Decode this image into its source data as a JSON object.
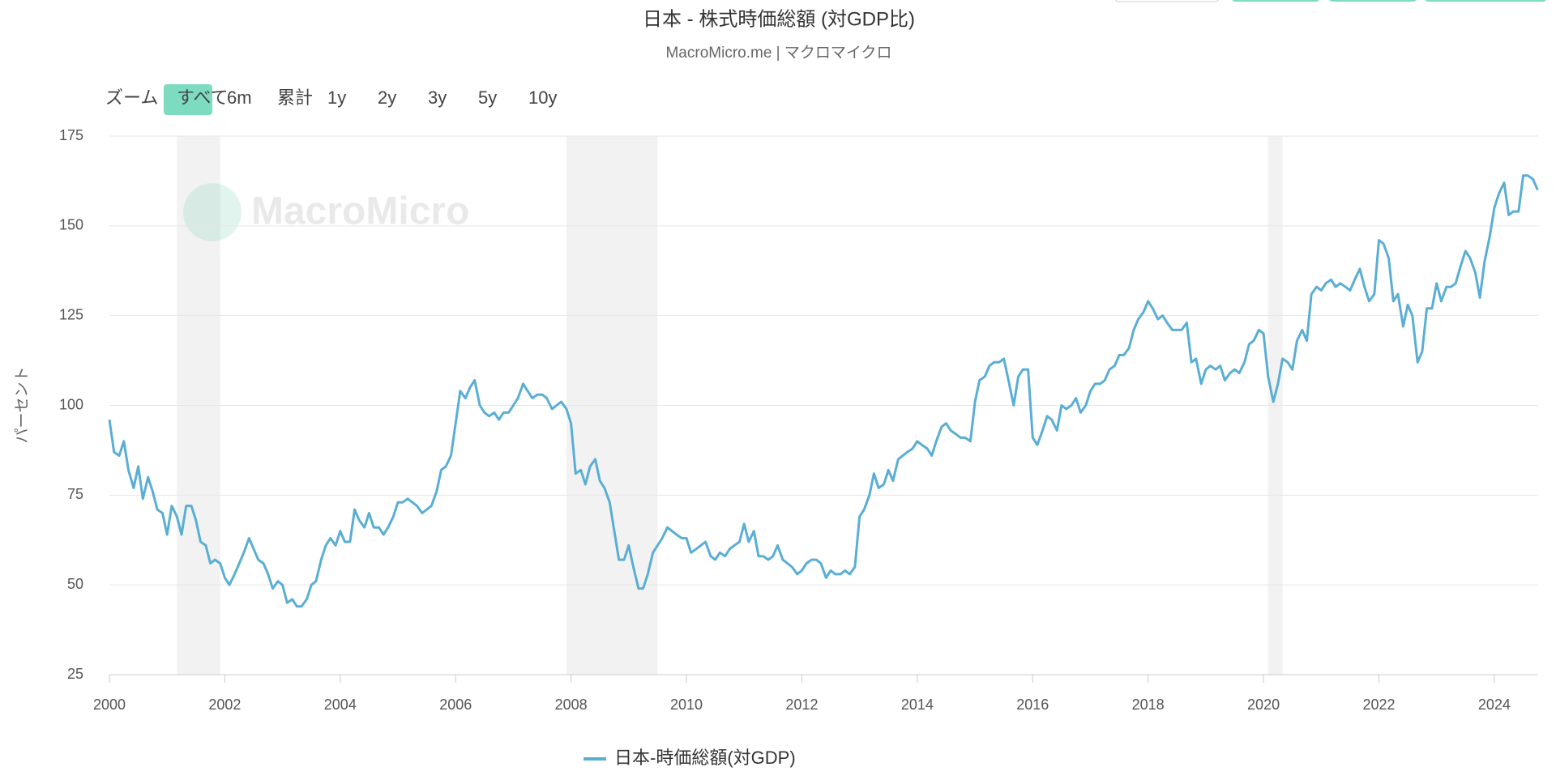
{
  "chart_data": {
    "type": "line",
    "title": "日本 - 株式時価総額 (対GDP比)",
    "subtitle": "MacroMicro.me | マクロマイクロ",
    "watermark": "MacroMicro",
    "y_label": "パーセント",
    "zoom_label": "ズーム",
    "zoom_buttons": [
      "すべて",
      "6m",
      "累計",
      "1y",
      "2y",
      "3y",
      "5y",
      "10y"
    ],
    "xlim": [
      2000,
      2024.76
    ],
    "ylim": [
      25,
      175
    ],
    "xticks": [
      2000,
      2002,
      2004,
      2006,
      2008,
      2010,
      2012,
      2014,
      2016,
      2018,
      2020,
      2022,
      2024
    ],
    "yticks": [
      25,
      50,
      75,
      100,
      125,
      150,
      175
    ],
    "grid": true,
    "shaded_ranges": [
      [
        2001.17,
        2001.92
      ],
      [
        2007.92,
        2009.5
      ],
      [
        2020.08,
        2020.33
      ]
    ],
    "x": [
      2000.0,
      2000.08,
      2000.17,
      2000.25,
      2000.33,
      2000.42,
      2000.5,
      2000.58,
      2000.67,
      2000.75,
      2000.83,
      2000.92,
      2001.0,
      2001.08,
      2001.17,
      2001.25,
      2001.33,
      2001.42,
      2001.5,
      2001.58,
      2001.67,
      2001.75,
      2001.83,
      2001.92,
      2002.0,
      2002.08,
      2002.17,
      2002.25,
      2002.33,
      2002.42,
      2002.5,
      2002.58,
      2002.67,
      2002.75,
      2002.83,
      2002.92,
      2003.0,
      2003.08,
      2003.17,
      2003.25,
      2003.33,
      2003.42,
      2003.5,
      2003.58,
      2003.67,
      2003.75,
      2003.83,
      2003.92,
      2004.0,
      2004.08,
      2004.17,
      2004.25,
      2004.33,
      2004.42,
      2004.5,
      2004.58,
      2004.67,
      2004.75,
      2004.83,
      2004.92,
      2005.0,
      2005.08,
      2005.17,
      2005.25,
      2005.33,
      2005.42,
      2005.5,
      2005.58,
      2005.67,
      2005.75,
      2005.83,
      2005.92,
      2006.0,
      2006.08,
      2006.17,
      2006.25,
      2006.33,
      2006.42,
      2006.5,
      2006.58,
      2006.67,
      2006.75,
      2006.83,
      2006.92,
      2007.0,
      2007.08,
      2007.17,
      2007.25,
      2007.33,
      2007.42,
      2007.5,
      2007.58,
      2007.67,
      2007.75,
      2007.83,
      2007.92,
      2008.0,
      2008.08,
      2008.17,
      2008.25,
      2008.33,
      2008.42,
      2008.5,
      2008.58,
      2008.67,
      2008.75,
      2008.83,
      2008.92,
      2009.0,
      2009.08,
      2009.17,
      2009.25,
      2009.33,
      2009.42,
      2009.5,
      2009.58,
      2009.67,
      2009.75,
      2009.83,
      2009.92,
      2010.0,
      2010.08,
      2010.17,
      2010.25,
      2010.33,
      2010.42,
      2010.5,
      2010.58,
      2010.67,
      2010.75,
      2010.83,
      2010.92,
      2011.0,
      2011.08,
      2011.17,
      2011.25,
      2011.33,
      2011.42,
      2011.5,
      2011.58,
      2011.67,
      2011.75,
      2011.83,
      2011.92,
      2012.0,
      2012.08,
      2012.17,
      2012.25,
      2012.33,
      2012.42,
      2012.5,
      2012.58,
      2012.67,
      2012.75,
      2012.83,
      2012.92,
      2013.0,
      2013.08,
      2013.17,
      2013.25,
      2013.33,
      2013.42,
      2013.5,
      2013.58,
      2013.67,
      2013.75,
      2013.83,
      2013.92,
      2014.0,
      2014.08,
      2014.17,
      2014.25,
      2014.33,
      2014.42,
      2014.5,
      2014.58,
      2014.67,
      2014.75,
      2014.83,
      2014.92,
      2015.0,
      2015.08,
      2015.17,
      2015.25,
      2015.33,
      2015.42,
      2015.5,
      2015.58,
      2015.67,
      2015.75,
      2015.83,
      2015.92,
      2016.0,
      2016.08,
      2016.17,
      2016.25,
      2016.33,
      2016.42,
      2016.5,
      2016.58,
      2016.67,
      2016.75,
      2016.83,
      2016.92,
      2017.0,
      2017.08,
      2017.17,
      2017.25,
      2017.33,
      2017.42,
      2017.5,
      2017.58,
      2017.67,
      2017.75,
      2017.83,
      2017.92,
      2018.0,
      2018.08,
      2018.17,
      2018.25,
      2018.33,
      2018.42,
      2018.5,
      2018.58,
      2018.67,
      2018.75,
      2018.83,
      2018.92,
      2019.0,
      2019.08,
      2019.17,
      2019.25,
      2019.33,
      2019.42,
      2019.5,
      2019.58,
      2019.67,
      2019.75,
      2019.83,
      2019.92,
      2020.0,
      2020.08,
      2020.17,
      2020.25,
      2020.33,
      2020.42,
      2020.5,
      2020.58,
      2020.67,
      2020.75,
      2020.83,
      2020.92,
      2021.0,
      2021.08,
      2021.17,
      2021.25,
      2021.33,
      2021.42,
      2021.5,
      2021.58,
      2021.67,
      2021.75,
      2021.83,
      2021.92,
      2022.0,
      2022.08,
      2022.17,
      2022.25,
      2022.33,
      2022.42,
      2022.5,
      2022.58,
      2022.67,
      2022.75,
      2022.83,
      2022.92,
      2023.0,
      2023.08,
      2023.17,
      2023.25,
      2023.33,
      2023.42,
      2023.5,
      2023.58,
      2023.67,
      2023.75,
      2023.83,
      2023.92,
      2024.0,
      2024.08,
      2024.17,
      2024.25,
      2024.33,
      2024.42,
      2024.5,
      2024.58,
      2024.67,
      2024.75
    ],
    "series": [
      {
        "name": "日本-時価総額(対GDP)",
        "color": "#5aaed4",
        "values": [
          96,
          87,
          86,
          90,
          82,
          77,
          83,
          74,
          80,
          76,
          71,
          70,
          64,
          72,
          69,
          64,
          72,
          72,
          68,
          62,
          61,
          56,
          57,
          56,
          52,
          50,
          53,
          56,
          59,
          63,
          60,
          57,
          56,
          53,
          49,
          51,
          50,
          45,
          46,
          44,
          44,
          46,
          50,
          51,
          57,
          61,
          63,
          61,
          65,
          62,
          62,
          71,
          68,
          66,
          70,
          66,
          66,
          64,
          66,
          69,
          73,
          73,
          74,
          73,
          72,
          70,
          71,
          72,
          76,
          82,
          83,
          86,
          95,
          104,
          102,
          105,
          107,
          100,
          98,
          97,
          98,
          96,
          98,
          98,
          100,
          102,
          106,
          104,
          102,
          103,
          103,
          102,
          99,
          100,
          101,
          99,
          95,
          81,
          82,
          78,
          83,
          85,
          79,
          77,
          73,
          65,
          57,
          57,
          61,
          55,
          49,
          49,
          53,
          59,
          61,
          63,
          66,
          65,
          64,
          63,
          63,
          59,
          60,
          61,
          62,
          58,
          57,
          59,
          58,
          60,
          61,
          62,
          67,
          62,
          65,
          58,
          58,
          57,
          58,
          61,
          57,
          56,
          55,
          53,
          54,
          56,
          57,
          57,
          56,
          52,
          54,
          53,
          53,
          54,
          53,
          55,
          69,
          71,
          75,
          81,
          77,
          78,
          82,
          79,
          85,
          86,
          87,
          88,
          90,
          89,
          88,
          86,
          90,
          94,
          95,
          93,
          92,
          91,
          91,
          90,
          101,
          107,
          108,
          111,
          112,
          112,
          113,
          107,
          100,
          108,
          110,
          110,
          91,
          89,
          93,
          97,
          96,
          93,
          100,
          99,
          100,
          102,
          98,
          100,
          104,
          106,
          106,
          107,
          110,
          111,
          114,
          114,
          116,
          121,
          124,
          126,
          129,
          127,
          124,
          125,
          123,
          121,
          121,
          121,
          123,
          112,
          113,
          106,
          110,
          111,
          110,
          111,
          107,
          109,
          110,
          109,
          112,
          117,
          118,
          121,
          120,
          108,
          101,
          106,
          113,
          112,
          110,
          118,
          121,
          118,
          131,
          133,
          132,
          134,
          135,
          133,
          134,
          133,
          132,
          135,
          138,
          133,
          129,
          131,
          146,
          145,
          141,
          129,
          131,
          122,
          128,
          125,
          112,
          115,
          127,
          127,
          134,
          129,
          133,
          133,
          134,
          139,
          143,
          141,
          137,
          130,
          140,
          147,
          155,
          159,
          162,
          153,
          154,
          154,
          164,
          164,
          163,
          160
        ]
      }
    ]
  }
}
